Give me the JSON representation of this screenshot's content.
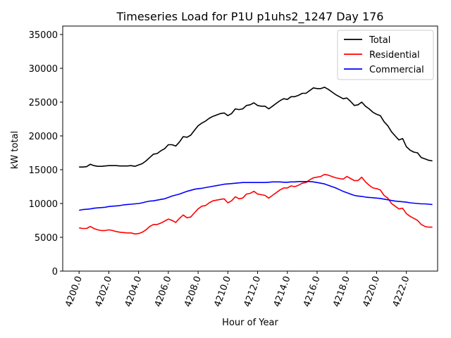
{
  "chart_data": {
    "type": "line",
    "title": "Timeseries Load for P1U p1uhs2_1247  Day 176",
    "xlabel": "Hour of Year",
    "ylabel": "kW total",
    "xlim": [
      4198.9,
      4224.1
    ],
    "ylim": [
      0,
      36250
    ],
    "x_ticks": [
      4200,
      4202,
      4204,
      4206,
      4208,
      4210,
      4212,
      4214,
      4216,
      4218,
      4220,
      4222
    ],
    "x_tick_labels": [
      "4200.0",
      "4202.0",
      "4204.0",
      "4206.0",
      "4208.0",
      "4210.0",
      "4212.0",
      "4214.0",
      "4216.0",
      "4218.0",
      "4220.0",
      "4222.0"
    ],
    "y_ticks": [
      0,
      5000,
      10000,
      15000,
      20000,
      25000,
      30000,
      35000
    ],
    "y_tick_labels": [
      "0",
      "5000",
      "10000",
      "15000",
      "20000",
      "25000",
      "30000",
      "35000"
    ],
    "legend_position": "top-right",
    "x": [
      4200.0,
      4200.25,
      4200.5,
      4200.75,
      4201.0,
      4201.25,
      4201.5,
      4201.75,
      4202.0,
      4202.25,
      4202.5,
      4202.75,
      4203.0,
      4203.25,
      4203.5,
      4203.75,
      4204.0,
      4204.25,
      4204.5,
      4204.75,
      4205.0,
      4205.25,
      4205.5,
      4205.75,
      4206.0,
      4206.25,
      4206.5,
      4206.75,
      4207.0,
      4207.25,
      4207.5,
      4207.75,
      4208.0,
      4208.25,
      4208.5,
      4208.75,
      4209.0,
      4209.25,
      4209.5,
      4209.75,
      4210.0,
      4210.25,
      4210.5,
      4210.75,
      4211.0,
      4211.25,
      4211.5,
      4211.75,
      4212.0,
      4212.25,
      4212.5,
      4212.75,
      4213.0,
      4213.25,
      4213.5,
      4213.75,
      4214.0,
      4214.25,
      4214.5,
      4214.75,
      4215.0,
      4215.25,
      4215.5,
      4215.75,
      4216.0,
      4216.25,
      4216.5,
      4216.75,
      4217.0,
      4217.25,
      4217.5,
      4217.75,
      4218.0,
      4218.25,
      4218.5,
      4218.75,
      4219.0,
      4219.25,
      4219.5,
      4219.75,
      4220.0,
      4220.25,
      4220.5,
      4220.75,
      4221.0,
      4221.25,
      4221.5,
      4221.75,
      4222.0,
      4222.25,
      4222.5,
      4222.75,
      4223.0,
      4223.25,
      4223.5,
      4223.75
    ],
    "series": [
      {
        "name": "Total",
        "color": "#000000",
        "values": [
          15400,
          15400,
          15450,
          15800,
          15600,
          15500,
          15500,
          15550,
          15600,
          15600,
          15600,
          15550,
          15550,
          15550,
          15600,
          15500,
          15700,
          15900,
          16300,
          16800,
          17300,
          17400,
          17800,
          18100,
          18700,
          18700,
          18500,
          19100,
          19900,
          19800,
          20100,
          20800,
          21500,
          21900,
          22200,
          22600,
          22900,
          23100,
          23300,
          23400,
          23000,
          23300,
          24000,
          23900,
          24000,
          24500,
          24600,
          24900,
          24500,
          24400,
          24400,
          24000,
          24400,
          24800,
          25200,
          25500,
          25400,
          25800,
          25800,
          26000,
          26300,
          26300,
          26700,
          27100,
          27000,
          27000,
          27200,
          26900,
          26500,
          26100,
          25800,
          25500,
          25600,
          25100,
          24500,
          24600,
          25000,
          24400,
          24000,
          23500,
          23200,
          23000,
          22100,
          21500,
          20600,
          20000,
          19400,
          19600,
          18400,
          17900,
          17600,
          17500,
          16800,
          16600,
          16400,
          16300
        ]
      },
      {
        "name": "Residential",
        "color": "#ff0000",
        "values": [
          6400,
          6300,
          6300,
          6600,
          6300,
          6100,
          6000,
          6000,
          6100,
          6000,
          5850,
          5750,
          5700,
          5650,
          5650,
          5500,
          5550,
          5750,
          6100,
          6600,
          6900,
          6900,
          7100,
          7400,
          7700,
          7500,
          7200,
          7800,
          8300,
          7900,
          8000,
          8600,
          9200,
          9600,
          9700,
          10100,
          10400,
          10500,
          10600,
          10700,
          10100,
          10400,
          11000,
          10700,
          10800,
          11400,
          11500,
          11800,
          11400,
          11300,
          11200,
          10800,
          11200,
          11600,
          12000,
          12300,
          12300,
          12600,
          12500,
          12700,
          13000,
          13100,
          13500,
          13800,
          13900,
          14000,
          14300,
          14200,
          14000,
          13800,
          13700,
          13600,
          14000,
          13700,
          13400,
          13400,
          13900,
          13200,
          12700,
          12300,
          12200,
          12000,
          11200,
          10800,
          10000,
          9600,
          9200,
          9300,
          8500,
          8100,
          7800,
          7500,
          6900,
          6600,
          6500,
          6500
        ]
      },
      {
        "name": "Commercial",
        "color": "#0000ff",
        "values": [
          9000,
          9100,
          9150,
          9200,
          9300,
          9350,
          9400,
          9450,
          9550,
          9600,
          9650,
          9700,
          9800,
          9850,
          9900,
          9950,
          10000,
          10100,
          10250,
          10350,
          10400,
          10500,
          10600,
          10700,
          10900,
          11100,
          11250,
          11400,
          11600,
          11800,
          11950,
          12100,
          12200,
          12250,
          12350,
          12450,
          12550,
          12650,
          12750,
          12850,
          12900,
          12950,
          13000,
          13050,
          13100,
          13100,
          13100,
          13100,
          13100,
          13100,
          13100,
          13150,
          13200,
          13200,
          13200,
          13150,
          13150,
          13200,
          13200,
          13250,
          13250,
          13250,
          13250,
          13200,
          13100,
          13000,
          12900,
          12700,
          12500,
          12300,
          12050,
          11800,
          11600,
          11400,
          11200,
          11100,
          11050,
          10950,
          10900,
          10850,
          10800,
          10750,
          10650,
          10550,
          10450,
          10350,
          10300,
          10250,
          10200,
          10100,
          10050,
          10000,
          9950,
          9950,
          9900,
          9850
        ]
      }
    ]
  }
}
